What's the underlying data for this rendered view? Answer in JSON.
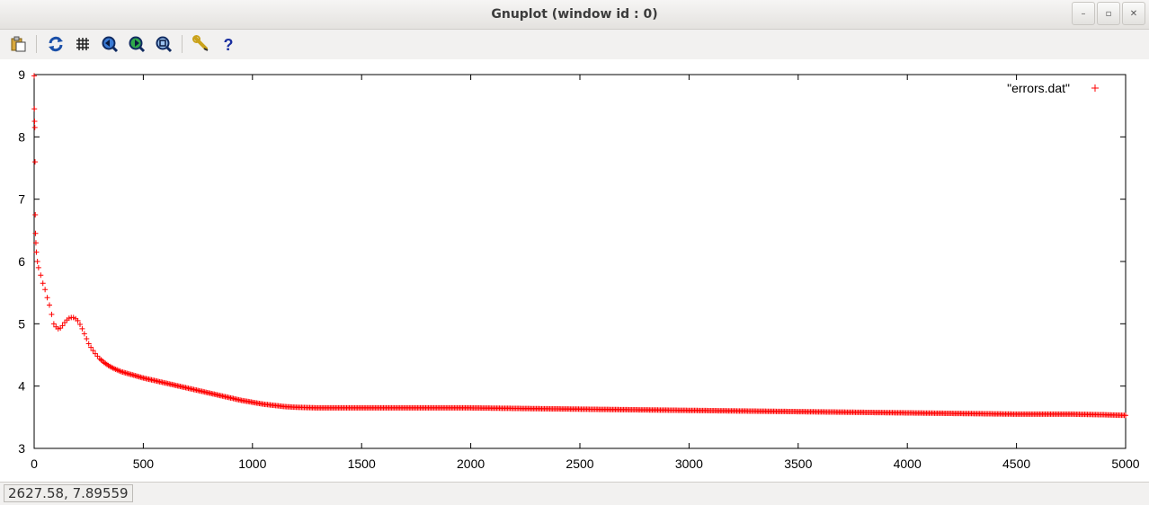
{
  "window": {
    "title": "Gnuplot (window id : 0)",
    "buttons": [
      {
        "name": "minimize-button",
        "glyph": "–"
      },
      {
        "name": "maximize-button",
        "glyph": "▫"
      },
      {
        "name": "close-button",
        "glyph": "✕"
      }
    ]
  },
  "toolbar": {
    "items": [
      {
        "name": "copy-to-clipboard-icon"
      },
      {
        "name": "replot-icon"
      },
      {
        "name": "grid-icon"
      },
      {
        "name": "previous-zoom-icon"
      },
      {
        "name": "next-zoom-icon"
      },
      {
        "name": "autoscale-icon"
      },
      {
        "name": "settings-wrench-icon"
      },
      {
        "name": "help-icon"
      }
    ]
  },
  "status": {
    "coordinates": "2627.58,  7.89559"
  },
  "chart_data": {
    "type": "scatter",
    "title": "",
    "xlabel": "",
    "ylabel": "",
    "xlim": [
      0,
      5000
    ],
    "ylim": [
      3,
      9
    ],
    "x_ticks": [
      "0",
      "500",
      "1000",
      "1500",
      "2000",
      "2500",
      "3000",
      "3500",
      "4000",
      "4500",
      "5000"
    ],
    "y_ticks": [
      "3",
      "4",
      "5",
      "6",
      "7",
      "8",
      "9"
    ],
    "grid": false,
    "legend_position": "top-right",
    "point_style": "plus",
    "color": "#ff0000",
    "series": [
      {
        "name": "\"errors.dat\"",
        "x": [
          0,
          1,
          2,
          3,
          4,
          5,
          6,
          8,
          10,
          15,
          20,
          30,
          40,
          50,
          60,
          70,
          80,
          90,
          100,
          110,
          120,
          130,
          140,
          150,
          160,
          170,
          180,
          190,
          200,
          210,
          220,
          230,
          240,
          250,
          260,
          270,
          280,
          290,
          300,
          320,
          340,
          360,
          380,
          400,
          450,
          500,
          550,
          600,
          650,
          700,
          750,
          800,
          850,
          900,
          950,
          1000,
          1050,
          1100,
          1150,
          1200,
          1300,
          1400,
          1500,
          1750,
          2000,
          2250,
          2500,
          2750,
          3000,
          3250,
          3500,
          3750,
          4000,
          4250,
          4500,
          4750,
          4900,
          5000
        ],
        "y": [
          8.98,
          8.45,
          8.25,
          8.15,
          7.6,
          6.75,
          6.45,
          6.3,
          6.15,
          6.0,
          5.9,
          5.78,
          5.65,
          5.55,
          5.42,
          5.3,
          5.15,
          5.0,
          4.95,
          4.92,
          4.93,
          4.97,
          5.02,
          5.06,
          5.09,
          5.1,
          5.1,
          5.08,
          5.05,
          4.99,
          4.92,
          4.84,
          4.76,
          4.68,
          4.62,
          4.57,
          4.52,
          4.48,
          4.44,
          4.38,
          4.33,
          4.29,
          4.26,
          4.23,
          4.18,
          4.13,
          4.09,
          4.05,
          4.01,
          3.97,
          3.93,
          3.89,
          3.85,
          3.81,
          3.77,
          3.74,
          3.71,
          3.69,
          3.67,
          3.66,
          3.65,
          3.65,
          3.65,
          3.65,
          3.65,
          3.64,
          3.63,
          3.62,
          3.61,
          3.6,
          3.59,
          3.58,
          3.57,
          3.56,
          3.55,
          3.55,
          3.54,
          3.53
        ]
      }
    ]
  }
}
